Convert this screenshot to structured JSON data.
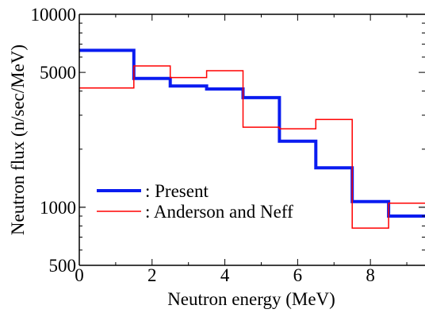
{
  "chart_data": {
    "type": "line",
    "title": "",
    "xlabel": "Neutron energy (MeV)",
    "ylabel": "Neutron flux (n/sec/MeV)",
    "xlim": [
      0,
      9.5
    ],
    "ylim": [
      500,
      10000
    ],
    "yscale": "log",
    "step": "post",
    "grid": false,
    "legend_position": "lower-left",
    "x_ticks": [
      0,
      2,
      4,
      6,
      8
    ],
    "x_tick_labels": [
      "0",
      "2",
      "4",
      "6",
      "8"
    ],
    "y_ticks": [
      500,
      1000,
      5000,
      10000
    ],
    "y_tick_labels": [
      "500",
      "1000",
      "5000",
      "10000"
    ],
    "series": [
      {
        "name": ": Present",
        "color": "#0a1cf0",
        "style": "thick",
        "x": [
          0,
          1.5,
          2.5,
          3.5,
          4.5,
          5.5,
          6.5,
          7.5,
          8.5,
          9.5
        ],
        "values": [
          6500,
          4650,
          4250,
          4100,
          3700,
          2200,
          1600,
          1070,
          900,
          900
        ]
      },
      {
        "name": ": Anderson and Neff",
        "color": "#ff0000",
        "style": "thin",
        "x": [
          0,
          1.5,
          2.5,
          3.5,
          4.5,
          5.5,
          6.5,
          7.5,
          8.5,
          9.5
        ],
        "values": [
          4150,
          5400,
          4700,
          5100,
          2600,
          2550,
          2850,
          780,
          1050,
          1050
        ]
      }
    ]
  }
}
